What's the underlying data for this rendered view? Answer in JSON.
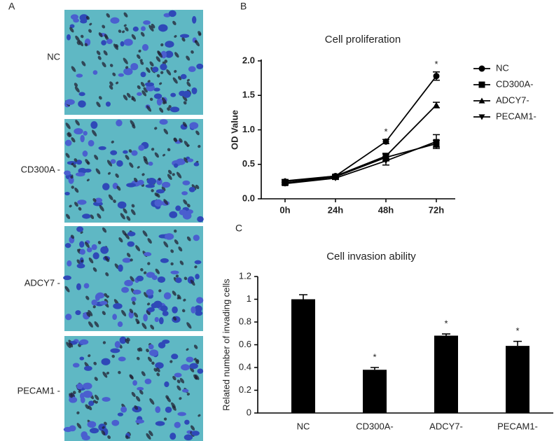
{
  "figure": {
    "panel_labels": [
      "A",
      "B",
      "C"
    ],
    "image_labels": [
      "NC",
      "CD300A -",
      "ADCY7 -",
      "PECAM1 -"
    ]
  },
  "chart_data": [
    {
      "type": "line",
      "title": "Cell proliferation",
      "y_label": "OD Value",
      "categories": [
        "0h",
        "24h",
        "48h",
        "72h"
      ],
      "ylim": [
        0,
        2.0
      ],
      "yticks": [
        {
          "value": 0,
          "label": "0.0"
        },
        {
          "value": 0.5,
          "label": "0.5"
        },
        {
          "value": 1,
          "label": "1.0"
        },
        {
          "value": 1.5,
          "label": "1.5"
        },
        {
          "value": 2,
          "label": "2.0"
        }
      ],
      "significance": [
        null,
        null,
        "*",
        "*"
      ],
      "series": [
        {
          "name": "NC",
          "color": "#000000",
          "marker": "circle",
          "values": [
            0.25,
            0.33,
            0.83,
            1.78
          ],
          "errors": [
            0.02,
            0.02,
            0.03,
            0.06
          ]
        },
        {
          "name": "CD300A-",
          "color": "#000000",
          "marker": "square",
          "values": [
            0.23,
            0.32,
            0.6,
            0.8
          ],
          "errors": [
            0.02,
            0.02,
            0.05,
            0.05
          ]
        },
        {
          "name": "ADCY7-",
          "color": "#000000",
          "marker": "triangle-up",
          "values": [
            0.26,
            0.33,
            0.62,
            1.36
          ],
          "errors": [
            0.02,
            0.02,
            0.04,
            0.04
          ]
        },
        {
          "name": "PECAM1-",
          "color": "#000000",
          "marker": "triangle-down",
          "values": [
            0.22,
            0.3,
            0.55,
            0.83
          ],
          "errors": [
            0.02,
            0.02,
            0.06,
            0.1
          ]
        }
      ]
    },
    {
      "type": "bar",
      "title": "Cell invasion ability",
      "y_label": "Related number of invading cells",
      "categories": [
        "NC",
        "CD300A-",
        "ADCY7-",
        "PECAM1-"
      ],
      "values": [
        1.0,
        0.38,
        0.68,
        0.59
      ],
      "errors": [
        0.04,
        0.02,
        0.015,
        0.04
      ],
      "color": "#000000",
      "ylim": [
        0,
        1.2
      ],
      "yticks": [
        0,
        0.2,
        0.4,
        0.6,
        0.8,
        1,
        1.2
      ],
      "significance": [
        null,
        "*",
        "*",
        "*"
      ]
    }
  ]
}
